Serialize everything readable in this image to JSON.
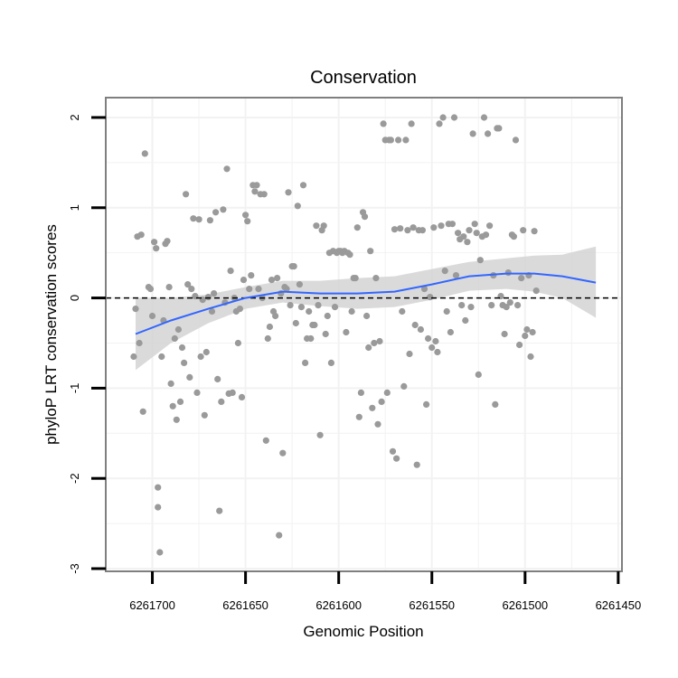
{
  "chart_data": {
    "type": "scatter",
    "title": "Conservation",
    "xlabel": "Genomic Position",
    "ylabel": "phyloP LRT conservation scores",
    "x_reversed": true,
    "xlim": [
      6261725,
      6261448
    ],
    "ylim": [
      -3.03,
      2.22
    ],
    "x_ticks": [
      {
        "value": 6261700,
        "label": "6261700"
      },
      {
        "value": 6261650,
        "label": "6261650"
      },
      {
        "value": 6261600,
        "label": "6261600"
      },
      {
        "value": 6261550,
        "label": "6261550"
      },
      {
        "value": 6261500,
        "label": "6261500"
      },
      {
        "value": 6261450,
        "label": "6261450"
      }
    ],
    "y_ticks": [
      {
        "value": -3,
        "label": "-3"
      },
      {
        "value": -2,
        "label": "-2"
      },
      {
        "value": -1,
        "label": "-1"
      },
      {
        "value": 0,
        "label": "0"
      },
      {
        "value": 1,
        "label": "1"
      },
      {
        "value": 2,
        "label": "2"
      }
    ],
    "grid": true,
    "reference_line": {
      "y": 0,
      "style": "dashed",
      "color": "#000000"
    },
    "colors": {
      "points": "#9a9a9a",
      "smooth": "#3366ff",
      "band": "#d3d3d3",
      "grid": "#f2f2f2",
      "border": "#7f7f7f"
    },
    "smooth": {
      "x": [
        6261709,
        6261690,
        6261670,
        6261650,
        6261630,
        6261610,
        6261590,
        6261570,
        6261550,
        6261530,
        6261510,
        6261495,
        6261480,
        6261462
      ],
      "y": [
        -0.4,
        -0.25,
        -0.12,
        0.0,
        0.07,
        0.05,
        0.05,
        0.07,
        0.15,
        0.24,
        0.27,
        0.27,
        0.24,
        0.17
      ],
      "lower": [
        -0.8,
        -0.5,
        -0.28,
        -0.12,
        -0.05,
        -0.09,
        -0.12,
        -0.1,
        -0.02,
        0.08,
        0.1,
        0.07,
        0.0,
        -0.22
      ],
      "upper": [
        0.0,
        0.0,
        0.04,
        0.12,
        0.19,
        0.19,
        0.22,
        0.24,
        0.32,
        0.4,
        0.44,
        0.47,
        0.48,
        0.57
      ]
    },
    "points": [
      [
        6261710,
        -0.65
      ],
      [
        6261709,
        -0.12
      ],
      [
        6261708,
        0.68
      ],
      [
        6261707,
        -0.5
      ],
      [
        6261706,
        0.7
      ],
      [
        6261705,
        -1.26
      ],
      [
        6261704,
        1.6
      ],
      [
        6261702,
        0.12
      ],
      [
        6261701,
        0.1
      ],
      [
        6261700,
        -0.2
      ],
      [
        6261699,
        0.62
      ],
      [
        6261698,
        0.55
      ],
      [
        6261697,
        -2.1
      ],
      [
        6261697,
        -2.32
      ],
      [
        6261696,
        -2.82
      ],
      [
        6261695,
        -0.65
      ],
      [
        6261694,
        -0.25
      ],
      [
        6261693,
        0.6
      ],
      [
        6261692,
        0.63
      ],
      [
        6261691,
        0.12
      ],
      [
        6261690,
        -0.95
      ],
      [
        6261689,
        -1.2
      ],
      [
        6261688,
        -0.45
      ],
      [
        6261687,
        -1.35
      ],
      [
        6261686,
        -0.35
      ],
      [
        6261685,
        -1.15
      ],
      [
        6261684,
        -0.55
      ],
      [
        6261683,
        -0.72
      ],
      [
        6261682,
        1.15
      ],
      [
        6261681,
        0.15
      ],
      [
        6261680,
        -0.88
      ],
      [
        6261679,
        0.1
      ],
      [
        6261678,
        0.88
      ],
      [
        6261677,
        0.02
      ],
      [
        6261676,
        -1.05
      ],
      [
        6261675,
        0.87
      ],
      [
        6261674,
        -0.65
      ],
      [
        6261673,
        -0.02
      ],
      [
        6261672,
        -1.3
      ],
      [
        6261671,
        -0.6
      ],
      [
        6261670,
        0.01
      ],
      [
        6261669,
        0.86
      ],
      [
        6261668,
        -0.15
      ],
      [
        6261667,
        0.05
      ],
      [
        6261666,
        0.95
      ],
      [
        6261665,
        -0.9
      ],
      [
        6261664,
        -2.36
      ],
      [
        6261663,
        -1.15
      ],
      [
        6261662,
        0.98
      ],
      [
        6261661,
        -0.05
      ],
      [
        6261660,
        1.43
      ],
      [
        6261659,
        -1.06
      ],
      [
        6261658,
        0.3
      ],
      [
        6261657,
        -1.05
      ],
      [
        6261656,
        0.0
      ],
      [
        6261655,
        -0.15
      ],
      [
        6261654,
        -0.5
      ],
      [
        6261653,
        -0.12
      ],
      [
        6261652,
        -1.1
      ],
      [
        6261651,
        0.2
      ],
      [
        6261650,
        0.92
      ],
      [
        6261649,
        0.85
      ],
      [
        6261648,
        0.1
      ],
      [
        6261647,
        0.25
      ],
      [
        6261646,
        1.25
      ],
      [
        6261645,
        1.18
      ],
      [
        6261644,
        1.25
      ],
      [
        6261643,
        0.1
      ],
      [
        6261642,
        1.15
      ],
      [
        6261641,
        0.0
      ],
      [
        6261640,
        1.15
      ],
      [
        6261639,
        -1.58
      ],
      [
        6261638,
        -0.45
      ],
      [
        6261637,
        -0.32
      ],
      [
        6261636,
        0.2
      ],
      [
        6261635,
        -0.15
      ],
      [
        6261634,
        -0.2
      ],
      [
        6261633,
        0.22
      ],
      [
        6261632,
        -2.63
      ],
      [
        6261631,
        0.05
      ],
      [
        6261630,
        -1.72
      ],
      [
        6261629,
        0.12
      ],
      [
        6261628,
        0.1
      ],
      [
        6261627,
        1.17
      ],
      [
        6261626,
        -0.08
      ],
      [
        6261625,
        0.35
      ],
      [
        6261624,
        0.35
      ],
      [
        6261623,
        -0.28
      ],
      [
        6261622,
        1.02
      ],
      [
        6261621,
        0.15
      ],
      [
        6261620,
        -0.1
      ],
      [
        6261619,
        1.25
      ],
      [
        6261618,
        -0.72
      ],
      [
        6261617,
        -0.45
      ],
      [
        6261616,
        -0.15
      ],
      [
        6261615,
        -0.45
      ],
      [
        6261614,
        -0.3
      ],
      [
        6261613,
        -0.3
      ],
      [
        6261612,
        0.8
      ],
      [
        6261611,
        -0.08
      ],
      [
        6261610,
        -1.52
      ],
      [
        6261609,
        0.75
      ],
      [
        6261608,
        0.8
      ],
      [
        6261607,
        -0.4
      ],
      [
        6261606,
        -0.2
      ],
      [
        6261605,
        0.5
      ],
      [
        6261604,
        -0.72
      ],
      [
        6261603,
        0.52
      ],
      [
        6261602,
        -0.1
      ],
      [
        6261601,
        0.5
      ],
      [
        6261600,
        0.52
      ],
      [
        6261599,
        0.52
      ],
      [
        6261598,
        0.5
      ],
      [
        6261597,
        0.52
      ],
      [
        6261596,
        -0.38
      ],
      [
        6261595,
        0.5
      ],
      [
        6261594,
        0.48
      ],
      [
        6261593,
        -0.15
      ],
      [
        6261592,
        0.22
      ],
      [
        6261591,
        0.22
      ],
      [
        6261590,
        0.78
      ],
      [
        6261589,
        -1.32
      ],
      [
        6261588,
        -1.05
      ],
      [
        6261587,
        0.95
      ],
      [
        6261586,
        0.9
      ],
      [
        6261585,
        -0.2
      ],
      [
        6261584,
        -0.55
      ],
      [
        6261583,
        0.52
      ],
      [
        6261582,
        -1.22
      ],
      [
        6261581,
        -0.5
      ],
      [
        6261580,
        0.22
      ],
      [
        6261579,
        -1.4
      ],
      [
        6261578,
        -0.48
      ],
      [
        6261577,
        -1.15
      ],
      [
        6261576,
        1.93
      ],
      [
        6261575,
        1.75
      ],
      [
        6261574,
        -1.05
      ],
      [
        6261573,
        1.75
      ],
      [
        6261572,
        1.75
      ],
      [
        6261571,
        -1.7
      ],
      [
        6261570,
        0.76
      ],
      [
        6261569,
        -1.78
      ],
      [
        6261568,
        1.75
      ],
      [
        6261567,
        0.77
      ],
      [
        6261566,
        -0.15
      ],
      [
        6261565,
        -0.98
      ],
      [
        6261564,
        1.75
      ],
      [
        6261563,
        0.75
      ],
      [
        6261562,
        -0.62
      ],
      [
        6261561,
        1.93
      ],
      [
        6261560,
        0.78
      ],
      [
        6261559,
        -0.3
      ],
      [
        6261558,
        -1.85
      ],
      [
        6261557,
        0.75
      ],
      [
        6261556,
        -0.35
      ],
      [
        6261555,
        0.75
      ],
      [
        6261554,
        0.1
      ],
      [
        6261553,
        -1.18
      ],
      [
        6261552,
        -0.45
      ],
      [
        6261551,
        0.01
      ],
      [
        6261550,
        -0.55
      ],
      [
        6261549,
        0.78
      ],
      [
        6261548,
        -0.48
      ],
      [
        6261547,
        -0.6
      ],
      [
        6261546,
        1.93
      ],
      [
        6261545,
        0.8
      ],
      [
        6261544,
        2.0
      ],
      [
        6261543,
        0.3
      ],
      [
        6261542,
        -0.15
      ],
      [
        6261541,
        0.82
      ],
      [
        6261540,
        -0.38
      ],
      [
        6261539,
        0.82
      ],
      [
        6261538,
        2.0
      ],
      [
        6261537,
        0.25
      ],
      [
        6261536,
        0.72
      ],
      [
        6261535,
        0.65
      ],
      [
        6261534,
        -0.08
      ],
      [
        6261533,
        0.68
      ],
      [
        6261532,
        -0.25
      ],
      [
        6261531,
        0.62
      ],
      [
        6261530,
        0.75
      ],
      [
        6261529,
        -0.1
      ],
      [
        6261528,
        1.82
      ],
      [
        6261527,
        0.82
      ],
      [
        6261526,
        0.72
      ],
      [
        6261525,
        -0.85
      ],
      [
        6261524,
        0.42
      ],
      [
        6261523,
        0.68
      ],
      [
        6261522,
        2.0
      ],
      [
        6261521,
        0.7
      ],
      [
        6261520,
        1.82
      ],
      [
        6261519,
        0.8
      ],
      [
        6261518,
        -0.08
      ],
      [
        6261517,
        0.25
      ],
      [
        6261516,
        -1.18
      ],
      [
        6261515,
        1.88
      ],
      [
        6261514,
        1.88
      ],
      [
        6261513,
        0.02
      ],
      [
        6261512,
        -0.08
      ],
      [
        6261511,
        -0.4
      ],
      [
        6261510,
        -0.1
      ],
      [
        6261509,
        0.28
      ],
      [
        6261508,
        -0.05
      ],
      [
        6261507,
        0.7
      ],
      [
        6261506,
        0.68
      ],
      [
        6261505,
        1.75
      ],
      [
        6261504,
        -0.08
      ],
      [
        6261503,
        -0.52
      ],
      [
        6261502,
        0.22
      ],
      [
        6261501,
        0.75
      ],
      [
        6261500,
        -0.42
      ],
      [
        6261499,
        -0.35
      ],
      [
        6261498,
        0.25
      ],
      [
        6261497,
        -0.65
      ],
      [
        6261496,
        -0.38
      ],
      [
        6261495,
        0.74
      ],
      [
        6261494,
        0.08
      ]
    ]
  }
}
